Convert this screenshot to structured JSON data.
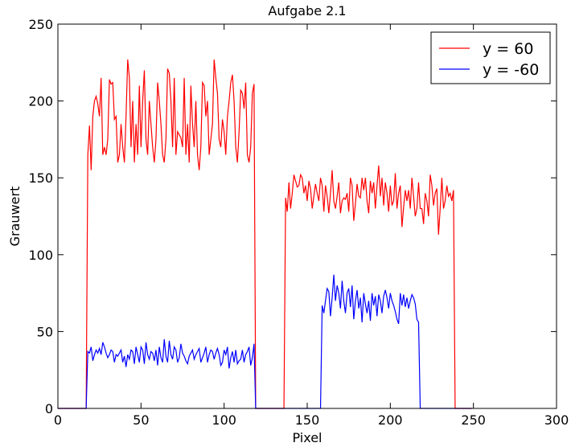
{
  "chart_data": {
    "type": "line",
    "title": "Aufgabe 2.1",
    "x_label": "Pixel",
    "y_label": "Grauwert",
    "x": [
      0,
      1,
      2,
      3,
      4,
      5,
      6,
      7,
      8,
      9,
      10,
      11,
      12,
      13,
      14,
      15,
      16,
      17,
      18,
      19,
      20,
      21,
      22,
      23,
      24,
      25,
      26,
      27,
      28,
      29,
      30,
      31,
      32,
      33,
      34,
      35,
      36,
      37,
      38,
      39,
      40,
      41,
      42,
      43,
      44,
      45,
      46,
      47,
      48,
      49,
      50,
      51,
      52,
      53,
      54,
      55,
      56,
      57,
      58,
      59,
      60,
      61,
      62,
      63,
      64,
      65,
      66,
      67,
      68,
      69,
      70,
      71,
      72,
      73,
      74,
      75,
      76,
      77,
      78,
      79,
      80,
      81,
      82,
      83,
      84,
      85,
      86,
      87,
      88,
      89,
      90,
      91,
      92,
      93,
      94,
      95,
      96,
      97,
      98,
      99,
      100,
      101,
      102,
      103,
      104,
      105,
      106,
      107,
      108,
      109,
      110,
      111,
      112,
      113,
      114,
      115,
      116,
      117,
      118,
      119,
      120,
      121,
      122,
      123,
      124,
      125,
      126,
      127,
      128,
      129,
      130,
      131,
      132,
      133,
      134,
      135,
      136,
      137,
      138,
      139,
      140,
      141,
      142,
      143,
      144,
      145,
      146,
      147,
      148,
      149,
      150,
      151,
      152,
      153,
      154,
      155,
      156,
      157,
      158,
      159,
      160,
      161,
      162,
      163,
      164,
      165,
      166,
      167,
      168,
      169,
      170,
      171,
      172,
      173,
      174,
      175,
      176,
      177,
      178,
      179,
      180,
      181,
      182,
      183,
      184,
      185,
      186,
      187,
      188,
      189,
      190,
      191,
      192,
      193,
      194,
      195,
      196,
      197,
      198,
      199,
      200,
      201,
      202,
      203,
      204,
      205,
      206,
      207,
      208,
      209,
      210,
      211,
      212,
      213,
      214,
      215,
      216,
      217,
      218,
      219,
      220,
      221,
      222,
      223,
      224,
      225,
      226,
      227,
      228,
      229,
      230,
      231,
      232,
      233,
      234,
      235,
      236,
      237,
      238,
      239,
      240,
      241,
      242,
      243,
      244,
      245,
      246,
      247,
      248,
      249
    ],
    "series": [
      {
        "name": "y = 60",
        "color": "#ff0000",
        "values": [
          0,
          0,
          0,
          0,
          0,
          0,
          0,
          0,
          0,
          0,
          0,
          0,
          0,
          0,
          0,
          0,
          0,
          0,
          165,
          184,
          155,
          190,
          200,
          203,
          198,
          190,
          215,
          165,
          170,
          165,
          175,
          214,
          211,
          212,
          188,
          190,
          160,
          165,
          185,
          170,
          160,
          190,
          227,
          215,
          170,
          200,
          160,
          185,
          165,
          210,
          170,
          200,
          220,
          175,
          165,
          200,
          185,
          170,
          160,
          175,
          212,
          200,
          185,
          165,
          160,
          175,
          221,
          218,
          200,
          170,
          215,
          165,
          180,
          178,
          176,
          170,
          215,
          165,
          185,
          160,
          210,
          185,
          170,
          200,
          165,
          155,
          170,
          212,
          210,
          190,
          200,
          165,
          175,
          185,
          227,
          215,
          205,
          175,
          170,
          188,
          180,
          165,
          190,
          200,
          212,
          217,
          200,
          170,
          160,
          180,
          207,
          205,
          195,
          212,
          165,
          160,
          170,
          205,
          211,
          0,
          0,
          0,
          0,
          0,
          0,
          0,
          0,
          0,
          0,
          0,
          0,
          0,
          0,
          0,
          0,
          0,
          0,
          137,
          128,
          147,
          130,
          140,
          152,
          148,
          144,
          145,
          152,
          150,
          140,
          145,
          135,
          148,
          143,
          130,
          138,
          146,
          140,
          135,
          150,
          145,
          128,
          145,
          138,
          127,
          140,
          155,
          135,
          130,
          138,
          147,
          127,
          135,
          137,
          136,
          140,
          128,
          150,
          145,
          122,
          133,
          146,
          138,
          137,
          150,
          142,
          150,
          135,
          127,
          148,
          140,
          147,
          130,
          145,
          158,
          138,
          150,
          132,
          147,
          140,
          128,
          145,
          132,
          135,
          153,
          130,
          140,
          145,
          118,
          131,
          142,
          135,
          142,
          130,
          150,
          138,
          125,
          130,
          147,
          130,
          130,
          120,
          140,
          135,
          125,
          152,
          145,
          132,
          140,
          143,
          113,
          130,
          150,
          130,
          135,
          145,
          138,
          140,
          135,
          142,
          0,
          0,
          0,
          0,
          0,
          0,
          0,
          0,
          0,
          0,
          0
        ]
      },
      {
        "name": "y = -60",
        "color": "#0000ff",
        "values": [
          0,
          0,
          0,
          0,
          0,
          0,
          0,
          0,
          0,
          0,
          0,
          0,
          0,
          0,
          0,
          0,
          0,
          0,
          37,
          36,
          40,
          31,
          35,
          38,
          36,
          39,
          35,
          43,
          40,
          36,
          33,
          35,
          38,
          37,
          30,
          35,
          34,
          36,
          38,
          30,
          34,
          27,
          35,
          32,
          38,
          37,
          29,
          40,
          35,
          30,
          40,
          38,
          29,
          43,
          35,
          32,
          37,
          36,
          31,
          38,
          28,
          40,
          33,
          30,
          45,
          34,
          30,
          44,
          35,
          32,
          40,
          38,
          30,
          33,
          42,
          36,
          34,
          31,
          29,
          34,
          36,
          38,
          32,
          35,
          37,
          39,
          30,
          33,
          36,
          40,
          30,
          35,
          38,
          37,
          32,
          36,
          39,
          35,
          28,
          30,
          38,
          35,
          40,
          26,
          33,
          37,
          30,
          38,
          29,
          31,
          32,
          38,
          30,
          35,
          37,
          40,
          28,
          33,
          42,
          0,
          0,
          0,
          0,
          0,
          0,
          0,
          0,
          0,
          0,
          0,
          0,
          0,
          0,
          0,
          0,
          0,
          0,
          0,
          0,
          0,
          0,
          0,
          0,
          0,
          0,
          0,
          0,
          0,
          0,
          0,
          0,
          0,
          0,
          0,
          0,
          0,
          0,
          0,
          0,
          67,
          62,
          70,
          78,
          76,
          60,
          72,
          87,
          70,
          80,
          75,
          65,
          83,
          70,
          62,
          75,
          78,
          66,
          80,
          58,
          70,
          77,
          65,
          72,
          56,
          75,
          68,
          62,
          70,
          57,
          75,
          67,
          73,
          60,
          74,
          70,
          62,
          73,
          77,
          72,
          65,
          75,
          70,
          67,
          63,
          58,
          55,
          75,
          67,
          74,
          66,
          72,
          65,
          70,
          74,
          72,
          68,
          58,
          56,
          0,
          0,
          0,
          0,
          0,
          0,
          0,
          0,
          0,
          0,
          0,
          0,
          0,
          0,
          0,
          0,
          0,
          0,
          0,
          0,
          0,
          0,
          0,
          0,
          0,
          0,
          0,
          0,
          0,
          0,
          0,
          0
        ]
      }
    ],
    "xlim": [
      0,
      300
    ],
    "ylim": [
      0,
      250
    ],
    "xticks": [
      0,
      50,
      100,
      150,
      200,
      250,
      300
    ],
    "yticks": [
      0,
      50,
      100,
      150,
      200,
      250
    ],
    "legend": "upper right"
  }
}
